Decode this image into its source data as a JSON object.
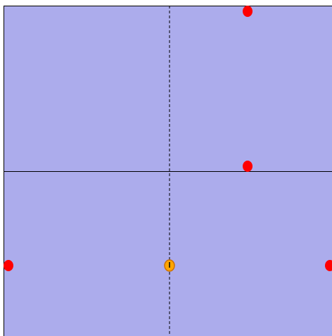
{
  "scene": {
    "background_color": "#acacec",
    "border_color": "#000000",
    "axis_color": "#000000",
    "target_color": "#ff0000",
    "player_fill": "#ffa500",
    "player_stroke": "#cc7000",
    "player_marker_color": "#000000"
  },
  "entities": {
    "targets": [
      {
        "name": "target-top"
      },
      {
        "name": "target-upper-mid"
      },
      {
        "name": "target-left"
      },
      {
        "name": "target-right"
      }
    ],
    "player": {
      "name": "player"
    }
  }
}
